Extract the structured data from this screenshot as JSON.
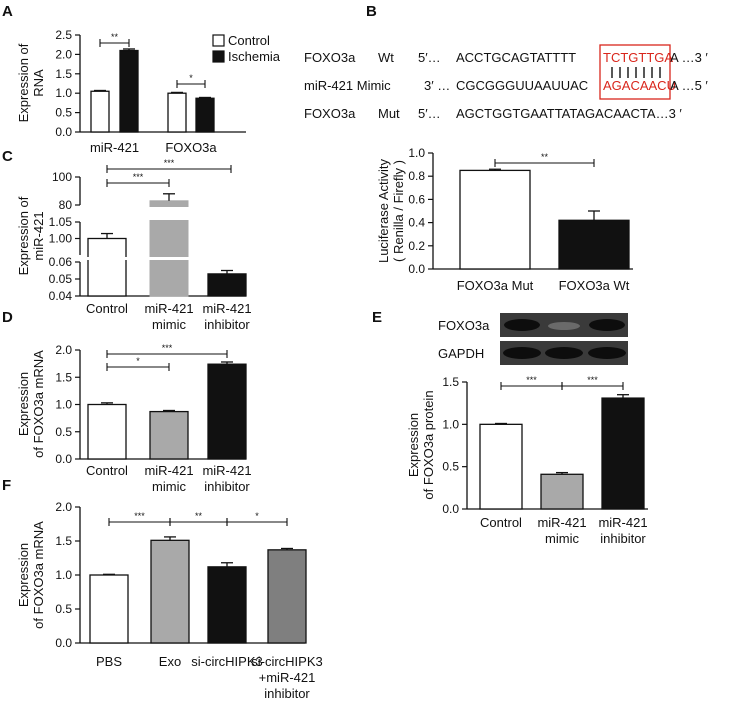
{
  "panels": [
    {
      "id": "A",
      "label": "A",
      "type": "bar",
      "ylabel": [
        "Expression of",
        "RNA"
      ],
      "ylim": [
        0,
        2.5
      ],
      "yticks": [
        "0.0",
        "0.5",
        "1.0",
        "1.5",
        "2.0",
        "2.5"
      ],
      "categories": [
        "miR-421",
        "FOXO3a"
      ],
      "series": [
        {
          "name": "Control",
          "values": [
            1.05,
            1.0
          ],
          "errors": [
            0.02,
            0.02
          ]
        },
        {
          "name": "Ischemia",
          "values": [
            2.1,
            0.87
          ],
          "errors": [
            0.04,
            0.02
          ]
        }
      ],
      "significance": [
        "**",
        "*"
      ]
    },
    {
      "id": "C",
      "label": "C",
      "type": "bar",
      "broken_axis": true,
      "ylabel": [
        "Expression of",
        "miR-421"
      ],
      "yticks": [
        "100",
        "80",
        "1.05",
        "1.00",
        "0.06",
        "0.05",
        "0.04"
      ],
      "categories": [
        [
          "Control"
        ],
        [
          "miR-421",
          "mimic"
        ],
        [
          "miR-421",
          "inhibitor"
        ]
      ],
      "values": [
        1.0,
        83,
        0.053
      ],
      "errors": [
        0.015,
        5,
        0.002
      ],
      "significance": [
        "***",
        "***"
      ]
    },
    {
      "id": "D",
      "label": "D",
      "type": "bar",
      "ylabel": [
        "Expression",
        "of FOXO3a mRNA"
      ],
      "ylim": [
        0,
        2.0
      ],
      "yticks": [
        "0.0",
        "0.5",
        "1.0",
        "1.5",
        "2.0"
      ],
      "categories": [
        [
          "Control"
        ],
        [
          "miR-421",
          "mimic"
        ],
        [
          "miR-421",
          "inhibitor"
        ]
      ],
      "values": [
        1.0,
        0.87,
        1.74
      ],
      "errors": [
        0.03,
        0.02,
        0.04
      ],
      "significance": [
        "*",
        "***"
      ]
    },
    {
      "id": "F",
      "label": "F",
      "type": "bar",
      "ylabel": [
        "Expression",
        "of FOXO3a mRNA"
      ],
      "ylim": [
        0,
        2.0
      ],
      "yticks": [
        "0.0",
        "0.5",
        "1.0",
        "1.5",
        "2.0"
      ],
      "categories": [
        [
          "PBS"
        ],
        [
          "Exo"
        ],
        [
          "si-circHIPK3"
        ],
        [
          "si-circHIPK3",
          "+miR-421",
          "inhibitor"
        ]
      ],
      "values": [
        1.0,
        1.51,
        1.12,
        1.37
      ],
      "errors": [
        0.01,
        0.05,
        0.06,
        0.02
      ],
      "significance": [
        "***",
        "**",
        "*"
      ]
    },
    {
      "id": "B",
      "label": "B",
      "type": "bar",
      "ylabel": [
        "Luciferase Activity",
        "( Renilla / Firefly )"
      ],
      "ylim": [
        0,
        1.0
      ],
      "yticks": [
        "0.0",
        "0.2",
        "0.4",
        "0.6",
        "0.8",
        "1.0"
      ],
      "categories": [
        [
          "FOXO3a Mut"
        ],
        [
          "FOXO3a Wt"
        ]
      ],
      "values": [
        0.85,
        0.42
      ],
      "errors": [
        0.01,
        0.08
      ],
      "significance": [
        "**"
      ]
    },
    {
      "id": "E",
      "label": "E",
      "type": "bar",
      "ylabel": [
        "Expression",
        "of FOXO3a protein"
      ],
      "ylim": [
        0,
        1.5
      ],
      "yticks": [
        "0.0",
        "0.5",
        "1.0",
        "1.5"
      ],
      "categories": [
        [
          "Control"
        ],
        [
          "miR-421",
          "mimic"
        ],
        [
          "miR-421",
          "inhibitor"
        ]
      ],
      "values": [
        1.0,
        0.41,
        1.31
      ],
      "errors": [
        0.01,
        0.02,
        0.04
      ],
      "significance": [
        "***",
        "***"
      ],
      "blots": [
        "FOXO3a",
        "GAPDH"
      ]
    }
  ],
  "sequence": {
    "rows": [
      {
        "name": "FOXO3a",
        "tag": "Wt",
        "prefix": "5′…",
        "body": "ACCTGCAGTATTTT",
        "highlight": "TCTGTTGA",
        "suffix": "A …3 ′"
      },
      {
        "name": "miR-421 Mimic",
        "tag": "",
        "prefix": "3′ …",
        "body": "CGCGGGUUAAUUAC",
        "highlight": "AGACAACU",
        "suffix": "A …5 ′"
      },
      {
        "name": "FOXO3a",
        "tag": "Mut",
        "prefix": "5′…",
        "body": "AGCTGGTGAATTATAGACAACTA…3 ′",
        "highlight": "",
        "suffix": ""
      }
    ]
  },
  "colors": {
    "white": "#ffffff",
    "black": "#111111",
    "gray": "#a9a9a9",
    "darkgray": "#7f7f7f",
    "red": "#d9261c"
  }
}
